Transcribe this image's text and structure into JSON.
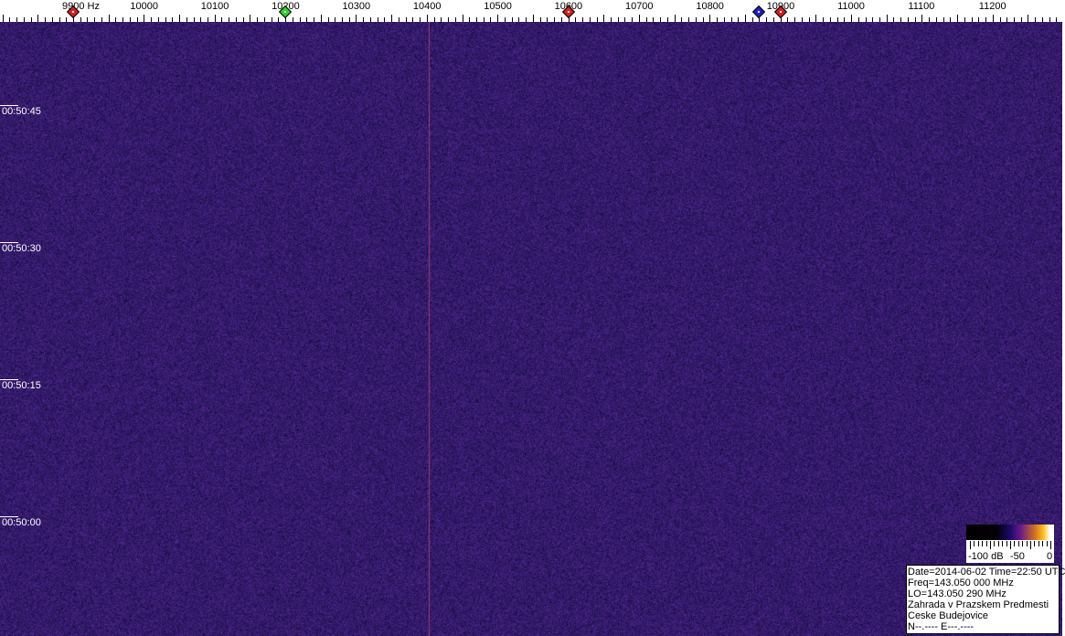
{
  "chart_data": {
    "type": "heatmap",
    "title": "",
    "x_axis": {
      "unit": "Hz",
      "tick_labels": [
        "9900 Hz",
        "10000",
        "10100",
        "10200",
        "10300",
        "10400",
        "10500",
        "10600",
        "10700",
        "10800",
        "10900",
        "11000",
        "11100",
        "11200"
      ],
      "range": [
        9800,
        11300
      ]
    },
    "y_axis": {
      "tick_labels": [
        "00:50:45",
        "00:50:30",
        "00:50:15",
        "00:50:00"
      ]
    },
    "markers": [
      {
        "freq": 9900,
        "color": "#d02020"
      },
      {
        "freq": 10200,
        "color": "#30d030"
      },
      {
        "freq": 10600,
        "color": "#d02020"
      },
      {
        "freq": 10870,
        "color": "#2020c0"
      },
      {
        "freq": 10900,
        "color": "#d02020"
      }
    ],
    "carrier_line_freq": 10403,
    "colorbar": {
      "labels": [
        "-100 dB",
        "-50",
        "0"
      ],
      "range_db": [
        -100,
        0
      ]
    },
    "colors": {
      "background": "#2a1c7c",
      "noise_hi": "#5a2a9a",
      "noise_lo": "#0e0a3a",
      "carrier": "#c05070"
    }
  },
  "info": {
    "lines": [
      "Date=2014-06-02 Time=22:50 UTC",
      "Freq=143.050 000 MHz",
      "LO=143.050 290 MHz",
      "Zahrada v Prazskem Predmesti",
      "Ceske Budejovice",
      "N--.---- E---.----"
    ]
  }
}
